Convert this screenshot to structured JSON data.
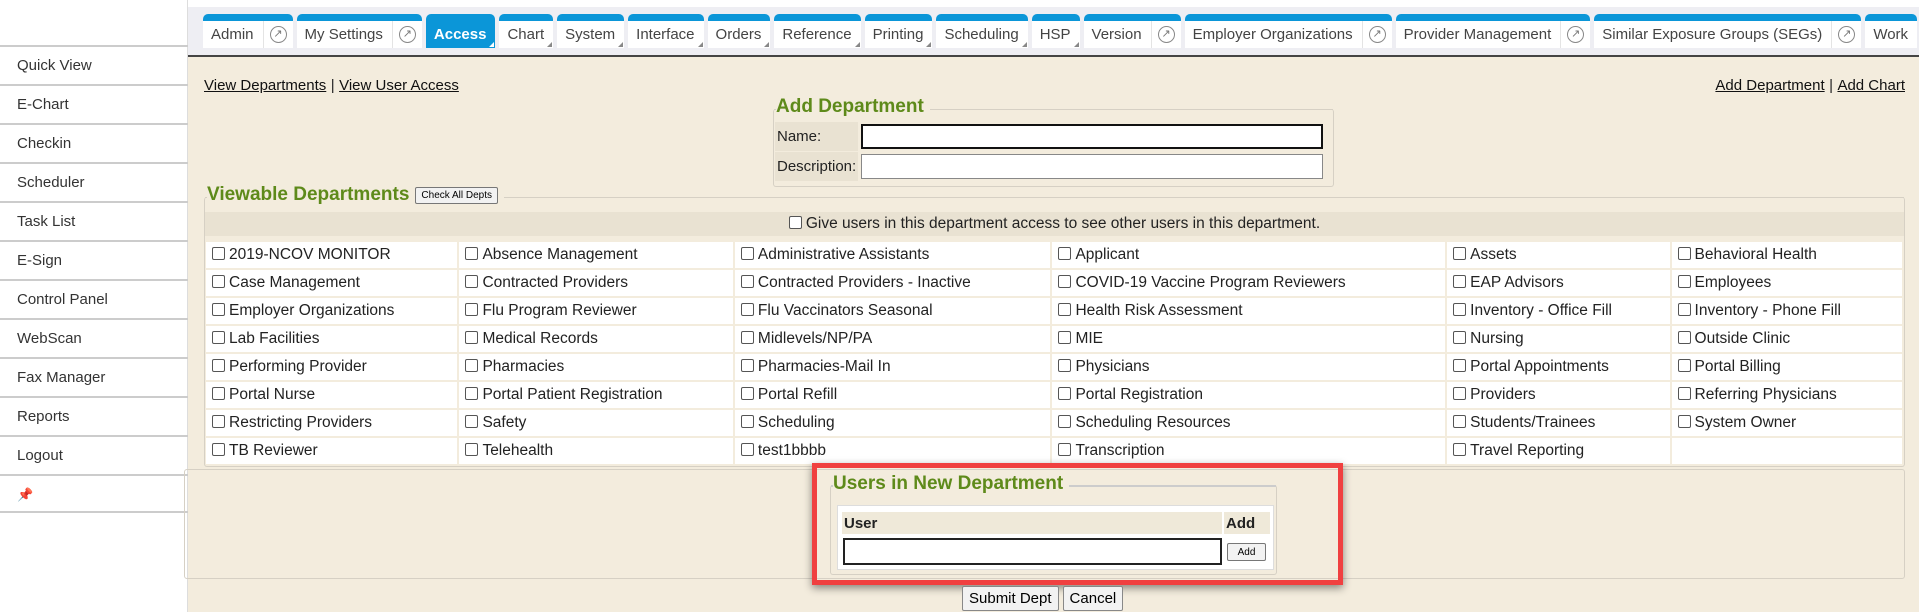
{
  "sidebar": {
    "items": [
      "Quick View",
      "E-Chart",
      "Checkin",
      "Scheduler",
      "Task List",
      "E-Sign",
      "Control Panel",
      "WebScan",
      "Fax Manager",
      "Reports",
      "Logout"
    ],
    "pin_icon": "pushpin-icon"
  },
  "tabs": [
    {
      "label": "Admin",
      "ext": true
    },
    {
      "label": "My Settings",
      "ext": true
    },
    {
      "label": "Access",
      "active": true,
      "menu": true
    },
    {
      "label": "Chart",
      "menu": true
    },
    {
      "label": "System",
      "menu": true
    },
    {
      "label": "Interface",
      "menu": true
    },
    {
      "label": "Orders",
      "menu": true
    },
    {
      "label": "Reference",
      "menu": true
    },
    {
      "label": "Printing",
      "menu": true
    },
    {
      "label": "Scheduling",
      "menu": true
    },
    {
      "label": "HSP",
      "menu": true
    },
    {
      "label": "Version",
      "ext": true
    },
    {
      "label": "Employer Organizations",
      "ext": true
    },
    {
      "label": "Provider Management",
      "ext": true
    },
    {
      "label": "Similar Exposure Groups (SEGs)",
      "ext": true
    },
    {
      "label": "Work",
      "ext": false
    }
  ],
  "links": {
    "view_departments": "View Departments",
    "view_user_access": "View User Access",
    "sep": "|",
    "add_department": "Add Department",
    "add_chart": "Add Chart"
  },
  "add_department": {
    "legend": "Add Department",
    "name_label": "Name:",
    "name_value": "",
    "description_label": "Description:",
    "description_value": ""
  },
  "viewable": {
    "legend": "Viewable Departments",
    "check_all": "Check All Depts",
    "give_access": "Give users in this department access to see other users in this department.",
    "rows": [
      [
        "2019-NCOV MONITOR",
        "Absence Management",
        "Administrative Assistants",
        "Applicant",
        "Assets",
        "Behavioral Health"
      ],
      [
        "Case Management",
        "Contracted Providers",
        "Contracted Providers - Inactive",
        "COVID-19 Vaccine Program Reviewers",
        "EAP Advisors",
        "Employees"
      ],
      [
        "Employer Organizations",
        "Flu Program Reviewer",
        "Flu Vaccinators Seasonal",
        "Health Risk Assessment",
        "Inventory - Office Fill",
        "Inventory - Phone Fill"
      ],
      [
        "Lab Facilities",
        "Medical Records",
        "Midlevels/NP/PA",
        "MIE",
        "Nursing",
        "Outside Clinic"
      ],
      [
        "Performing Provider",
        "Pharmacies",
        "Pharmacies-Mail In",
        "Physicians",
        "Portal Appointments",
        "Portal Billing"
      ],
      [
        "Portal Nurse",
        "Portal Patient Registration",
        "Portal Refill",
        "Portal Registration",
        "Providers",
        "Referring Physicians"
      ],
      [
        "Restricting Providers",
        "Safety",
        "Scheduling",
        "Scheduling Resources",
        "Students/Trainees",
        "System Owner"
      ],
      [
        "TB Reviewer",
        "Telehealth",
        "test1bbbb",
        "Transcription",
        "Travel Reporting",
        ""
      ]
    ]
  },
  "users": {
    "legend": "Users in New Department",
    "col_user": "User",
    "col_add": "Add",
    "user_value": "",
    "add_button": "Add"
  },
  "actions": {
    "submit": "Submit Dept",
    "cancel": "Cancel"
  },
  "colors": {
    "accent": "#0b96d8",
    "legend_green": "#5e8a1a",
    "highlight": "#f04040",
    "content_bg": "#f3ecdd"
  }
}
